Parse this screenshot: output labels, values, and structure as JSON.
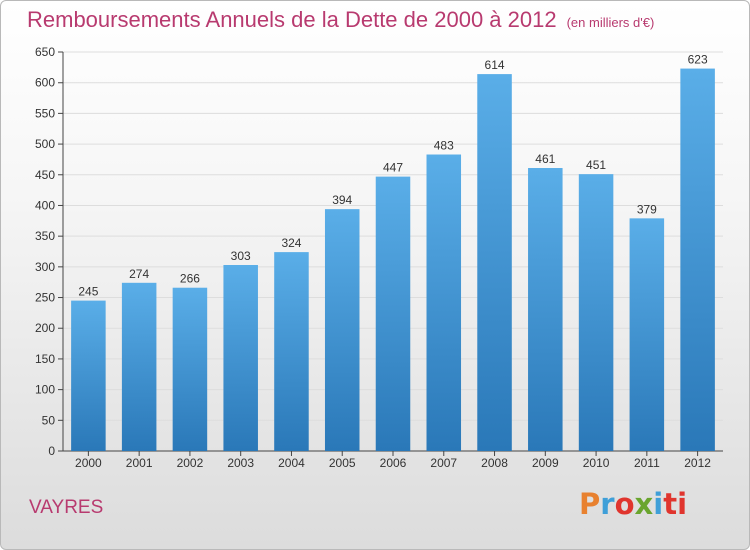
{
  "chart_data": {
    "type": "bar",
    "title": "Remboursements Annuels de la Dette de 2000 à 2012",
    "subtitle": "(en milliers d'€)",
    "categories": [
      "2000",
      "2001",
      "2002",
      "2003",
      "2004",
      "2005",
      "2006",
      "2007",
      "2008",
      "2009",
      "2010",
      "2011",
      "2012"
    ],
    "values": [
      245,
      274,
      266,
      303,
      324,
      394,
      447,
      483,
      614,
      461,
      451,
      379,
      623
    ],
    "ylim": [
      0,
      650
    ],
    "yticks": [
      0,
      50,
      100,
      150,
      200,
      250,
      300,
      350,
      400,
      450,
      500,
      550,
      600,
      650
    ],
    "grid": true,
    "bar_color_top": "#5aaee8",
    "bar_color_bottom": "#2a78b8",
    "grid_color": "#dddddd"
  },
  "footer": {
    "commune": "VAYRES",
    "logo": "Proxiti",
    "logo_colors": [
      "#e8812f",
      "#3f9fd8",
      "#e0352e",
      "#6aa52e",
      "#3f9fd8",
      "#e0352e",
      "#e0352e"
    ]
  }
}
